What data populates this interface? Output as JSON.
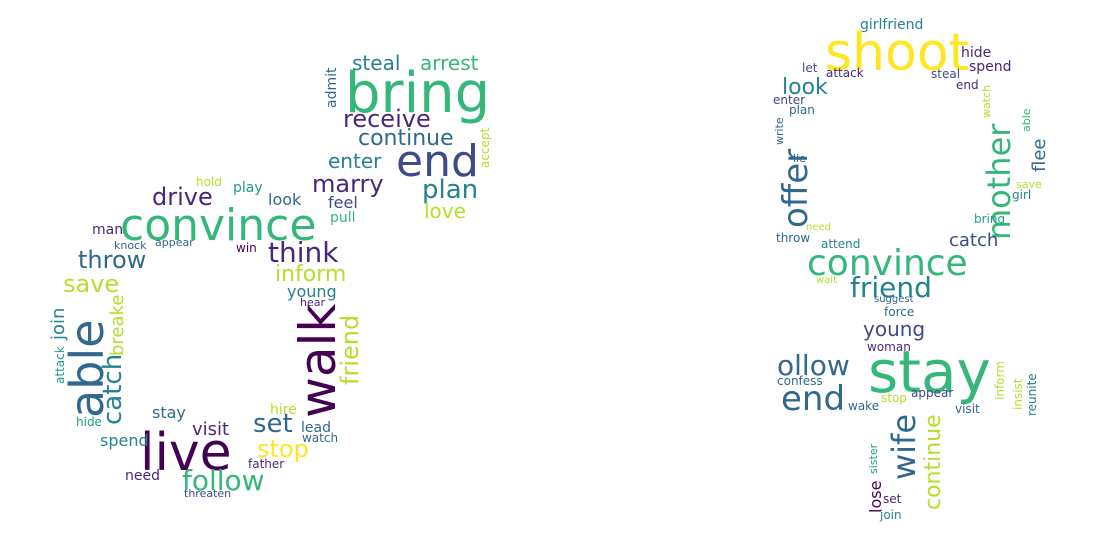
{
  "palette": [
    "#440154",
    "#482878",
    "#3e4a89",
    "#31688e",
    "#26828e",
    "#1f9e89",
    "#35b779",
    "#6ece58",
    "#b5de2b",
    "#fde725"
  ],
  "clouds": [
    {
      "name": "male-symbol-word-cloud",
      "words": [
        {
          "text": "bring",
          "c": 6
        },
        {
          "text": "end",
          "c": 2
        },
        {
          "text": "convince",
          "c": 6
        },
        {
          "text": "walk",
          "c": 0
        },
        {
          "text": "live",
          "c": 0
        },
        {
          "text": "able",
          "c": 3
        },
        {
          "text": "follow",
          "c": 6
        },
        {
          "text": "think",
          "c": 1
        },
        {
          "text": "marry",
          "c": 1
        },
        {
          "text": "receive",
          "c": 1
        },
        {
          "text": "continue",
          "c": 3
        },
        {
          "text": "drive",
          "c": 1
        },
        {
          "text": "throw",
          "c": 3
        },
        {
          "text": "plan",
          "c": 4
        },
        {
          "text": "friend",
          "c": 8
        },
        {
          "text": "inform",
          "c": 8
        },
        {
          "text": "stop",
          "c": 9
        },
        {
          "text": "set",
          "c": 3
        },
        {
          "text": "save",
          "c": 8
        },
        {
          "text": "catch",
          "c": 4
        },
        {
          "text": "steal",
          "c": 4
        },
        {
          "text": "arrest",
          "c": 6
        },
        {
          "text": "enter",
          "c": 4
        },
        {
          "text": "love",
          "c": 8
        },
        {
          "text": "join",
          "c": 4
        },
        {
          "text": "breake",
          "c": 8
        },
        {
          "text": "visit",
          "c": 1
        },
        {
          "text": "stay",
          "c": 3
        },
        {
          "text": "spend",
          "c": 4
        },
        {
          "text": "young",
          "c": 4
        },
        {
          "text": "look",
          "c": 3
        },
        {
          "text": "feel",
          "c": 2
        },
        {
          "text": "play",
          "c": 5
        },
        {
          "text": "hold",
          "c": 8
        },
        {
          "text": "admit",
          "c": 3
        },
        {
          "text": "accept",
          "c": 8
        },
        {
          "text": "pull",
          "c": 6
        },
        {
          "text": "man",
          "c": 1
        },
        {
          "text": "knock",
          "c": 3
        },
        {
          "text": "appear",
          "c": 3
        },
        {
          "text": "win",
          "c": 0
        },
        {
          "text": "attack",
          "c": 5
        },
        {
          "text": "hide",
          "c": 5
        },
        {
          "text": "need",
          "c": 1
        },
        {
          "text": "hire",
          "c": 8
        },
        {
          "text": "lead",
          "c": 3
        },
        {
          "text": "watch",
          "c": 3
        },
        {
          "text": "father",
          "c": 1
        },
        {
          "text": "threaten",
          "c": 2
        },
        {
          "text": "hear",
          "c": 1
        }
      ]
    },
    {
      "name": "female-symbol-word-cloud",
      "words": [
        {
          "text": "shoot",
          "c": 9
        },
        {
          "text": "stay",
          "c": 6
        },
        {
          "text": "convince",
          "c": 6
        },
        {
          "text": "mother",
          "c": 6
        },
        {
          "text": "offer",
          "c": 3
        },
        {
          "text": "friend",
          "c": 4
        },
        {
          "text": "end",
          "c": 3
        },
        {
          "text": "ollow",
          "c": 3
        },
        {
          "text": "wife",
          "c": 3
        },
        {
          "text": "continue",
          "c": 8
        },
        {
          "text": "young",
          "c": 2
        },
        {
          "text": "catch",
          "c": 2
        },
        {
          "text": "flee",
          "c": 3
        },
        {
          "text": "look",
          "c": 4
        },
        {
          "text": "girlfriend",
          "c": 4
        },
        {
          "text": "hide",
          "c": 1
        },
        {
          "text": "spend",
          "c": 1
        },
        {
          "text": "let",
          "c": 2
        },
        {
          "text": "attack",
          "c": 1
        },
        {
          "text": "steal",
          "c": 2
        },
        {
          "text": "end",
          "c": 1
        },
        {
          "text": "enter",
          "c": 2
        },
        {
          "text": "plan",
          "c": 3
        },
        {
          "text": "write",
          "c": 3
        },
        {
          "text": "lie",
          "c": 3
        },
        {
          "text": "watch",
          "c": 8
        },
        {
          "text": "able",
          "c": 6
        },
        {
          "text": "save",
          "c": 8
        },
        {
          "text": "girl",
          "c": 4
        },
        {
          "text": "bring",
          "c": 5
        },
        {
          "text": "need",
          "c": 8
        },
        {
          "text": "throw",
          "c": 3
        },
        {
          "text": "attend",
          "c": 4
        },
        {
          "text": "wait",
          "c": 8
        },
        {
          "text": "suggest",
          "c": 3
        },
        {
          "text": "force",
          "c": 3
        },
        {
          "text": "woman",
          "c": 1
        },
        {
          "text": "confess",
          "c": 3
        },
        {
          "text": "appear",
          "c": 2
        },
        {
          "text": "wake",
          "c": 3
        },
        {
          "text": "stop",
          "c": 8
        },
        {
          "text": "visit",
          "c": 3
        },
        {
          "text": "inform",
          "c": 8
        },
        {
          "text": "insist",
          "c": 8
        },
        {
          "text": "reunite",
          "c": 4
        },
        {
          "text": "sister",
          "c": 5
        },
        {
          "text": "lose",
          "c": 0
        },
        {
          "text": "set",
          "c": 1
        },
        {
          "text": "join",
          "c": 4
        }
      ]
    }
  ]
}
